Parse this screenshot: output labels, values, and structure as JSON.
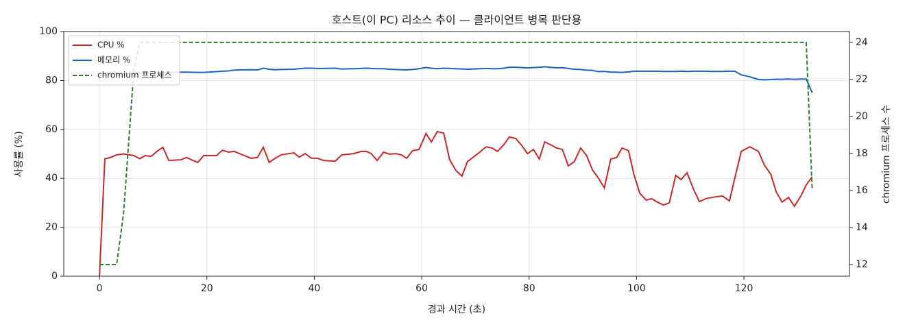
{
  "chart_data": {
    "type": "line",
    "title": "호스트(이 PC) 리소스 추이 — 클라이언트 병목 판단용",
    "xlabel": "경과 시간 (초)",
    "ylabel": "사용률 (%)",
    "y2label": "chromium 프로세스 수",
    "x": [
      0,
      1,
      2,
      3.2,
      4.5,
      6.4,
      7.5,
      8.5,
      9.6,
      10.7,
      11.8,
      12.9,
      15.2,
      16.2,
      18.3,
      19.4,
      21.8,
      22.9,
      24,
      25.1,
      26.2,
      28.2,
      29.4,
      30.5,
      31.6,
      32.6,
      33.8,
      36.2,
      37.2,
      38.3,
      39.5,
      40.6,
      41.7,
      43.9,
      45.1,
      47.4,
      48.7,
      49.7,
      50.6,
      51.7,
      52.9,
      54,
      55.2,
      56.2,
      57.2,
      58.3,
      59.5,
      60.8,
      61.8,
      62.9,
      64.1,
      65.2,
      66.4,
      67.5,
      68.5,
      70.8,
      72,
      73.1,
      74.1,
      75.3,
      76.3,
      77.5,
      78.6,
      79.7,
      80.8,
      81.9,
      82.9,
      84.2,
      85.1,
      86.2,
      87.3,
      88.4,
      89.6,
      90.7,
      91.8,
      92.9,
      94,
      95.2,
      96.3,
      97.3,
      98.5,
      99.5,
      100.6,
      101.8,
      102.8,
      103.9,
      105,
      106.1,
      107.3,
      108.3,
      109.4,
      110.6,
      111.7,
      112.9,
      114,
      116,
      117.3,
      118.3,
      119.5,
      121.1,
      122.7,
      123.8,
      125,
      126,
      127.1,
      128.3,
      129.4,
      130.6,
      131.6,
      132.7
    ],
    "series": [
      {
        "name": "CPU %",
        "color": "#c62828",
        "dashed": false,
        "values": [
          0,
          48,
          48.5,
          49.6,
          50,
          49.3,
          48,
          49.3,
          49,
          51,
          52.7,
          47.3,
          47.6,
          48.5,
          46.5,
          49.3,
          49.3,
          51.5,
          50.7,
          51,
          50,
          48.2,
          48.5,
          52.7,
          46.5,
          48,
          49.6,
          50.4,
          48.7,
          50.1,
          48.2,
          48.2,
          47.3,
          47,
          49.6,
          50.1,
          51,
          51,
          50.1,
          47.3,
          50.7,
          49.9,
          50.1,
          49.6,
          48.2,
          51.3,
          51.8,
          58.3,
          54.9,
          59.1,
          58.5,
          47.6,
          43.1,
          40.9,
          46.8,
          50.7,
          52.9,
          52.4,
          51,
          53.8,
          56.9,
          56.3,
          53.5,
          50.1,
          51.8,
          47.9,
          54.9,
          53.5,
          52.4,
          51.8,
          45.1,
          46.8,
          52.4,
          49.3,
          43.4,
          40.1,
          36.1,
          47.9,
          48.5,
          52.4,
          51.3,
          41.7,
          33.9,
          31.1,
          31.7,
          30.3,
          29.1,
          30,
          41.2,
          39.5,
          42.3,
          35.6,
          30.5,
          31.7,
          32.2,
          32.8,
          30.8,
          40.1,
          51,
          52.9,
          51,
          45.4,
          41.7,
          34.5,
          30.3,
          32.2,
          28.6,
          32.8,
          37.3,
          40.6
        ]
      },
      {
        "name": "메모리 %",
        "color": "#1565c0",
        "dashed": false,
        "values": [
          82,
          82.3,
          82.5,
          82.7,
          82.8,
          82.9,
          83,
          83,
          83.1,
          83.2,
          83.2,
          83.3,
          83.4,
          83.4,
          83.3,
          83.3,
          83.6,
          83.8,
          83.9,
          84.2,
          84.3,
          84.4,
          84.3,
          85,
          84.6,
          84.4,
          84.5,
          84.6,
          84.8,
          85,
          85,
          84.9,
          84.9,
          85,
          84.7,
          84.8,
          84.9,
          85,
          84.9,
          84.8,
          84.8,
          84.6,
          84.5,
          84.4,
          84.3,
          84.5,
          84.8,
          85.3,
          85,
          84.8,
          85,
          84.9,
          84.8,
          84.7,
          84.6,
          84.8,
          84.9,
          84.8,
          84.8,
          85,
          85.4,
          85.4,
          85.3,
          85.1,
          85.3,
          85.4,
          85.6,
          85.3,
          85.2,
          85.2,
          84.9,
          84.6,
          84.5,
          84.2,
          84.1,
          83.6,
          83.7,
          83.4,
          83.4,
          83.3,
          83.5,
          83.8,
          83.8,
          83.8,
          83.8,
          83.8,
          83.7,
          83.7,
          83.7,
          83.8,
          83.7,
          83.8,
          83.8,
          83.8,
          83.7,
          83.7,
          83.8,
          83.8,
          82.3,
          81.5,
          80.4,
          80.3,
          80.4,
          80.5,
          80.5,
          80.6,
          80.5,
          80.6,
          80.6,
          75
        ]
      },
      {
        "name": "chromium 프로세스",
        "color": "#2e7d32",
        "dashed": true,
        "axis": "y2",
        "values": [
          12,
          12,
          12,
          12,
          14.8,
          22.5,
          24,
          24,
          24,
          24,
          24,
          24,
          24,
          24,
          24,
          24,
          24,
          24,
          24,
          24,
          24,
          24,
          24,
          24,
          24,
          24,
          24,
          24,
          24,
          24,
          24,
          24,
          24,
          24,
          24,
          24,
          24,
          24,
          24,
          24,
          24,
          24,
          24,
          24,
          24,
          24,
          24,
          24,
          24,
          24,
          24,
          24,
          24,
          24,
          24,
          24,
          24,
          24,
          24,
          24,
          24,
          24,
          24,
          24,
          24,
          24,
          24,
          24,
          24,
          24,
          24,
          24,
          24,
          24,
          24,
          24,
          24,
          24,
          24,
          24,
          24,
          24,
          24,
          24,
          24,
          24,
          24,
          24,
          24,
          24,
          24,
          24,
          24,
          24,
          24,
          24,
          24,
          24,
          24,
          24,
          24,
          24,
          24,
          24,
          24,
          24,
          24,
          24,
          24,
          16.1
        ]
      }
    ],
    "xlim": [
      -6.65,
      139.65
    ],
    "xticks": [
      0,
      20,
      40,
      60,
      80,
      100,
      120
    ],
    "ylim": [
      0,
      100
    ],
    "yticks": [
      0,
      20,
      40,
      60,
      80,
      100
    ],
    "y2lim": [
      11.37,
      24.59
    ],
    "y2ticks": [
      12,
      14,
      16,
      18,
      20,
      22,
      24
    ],
    "grid": true,
    "legend": "upper-left"
  }
}
